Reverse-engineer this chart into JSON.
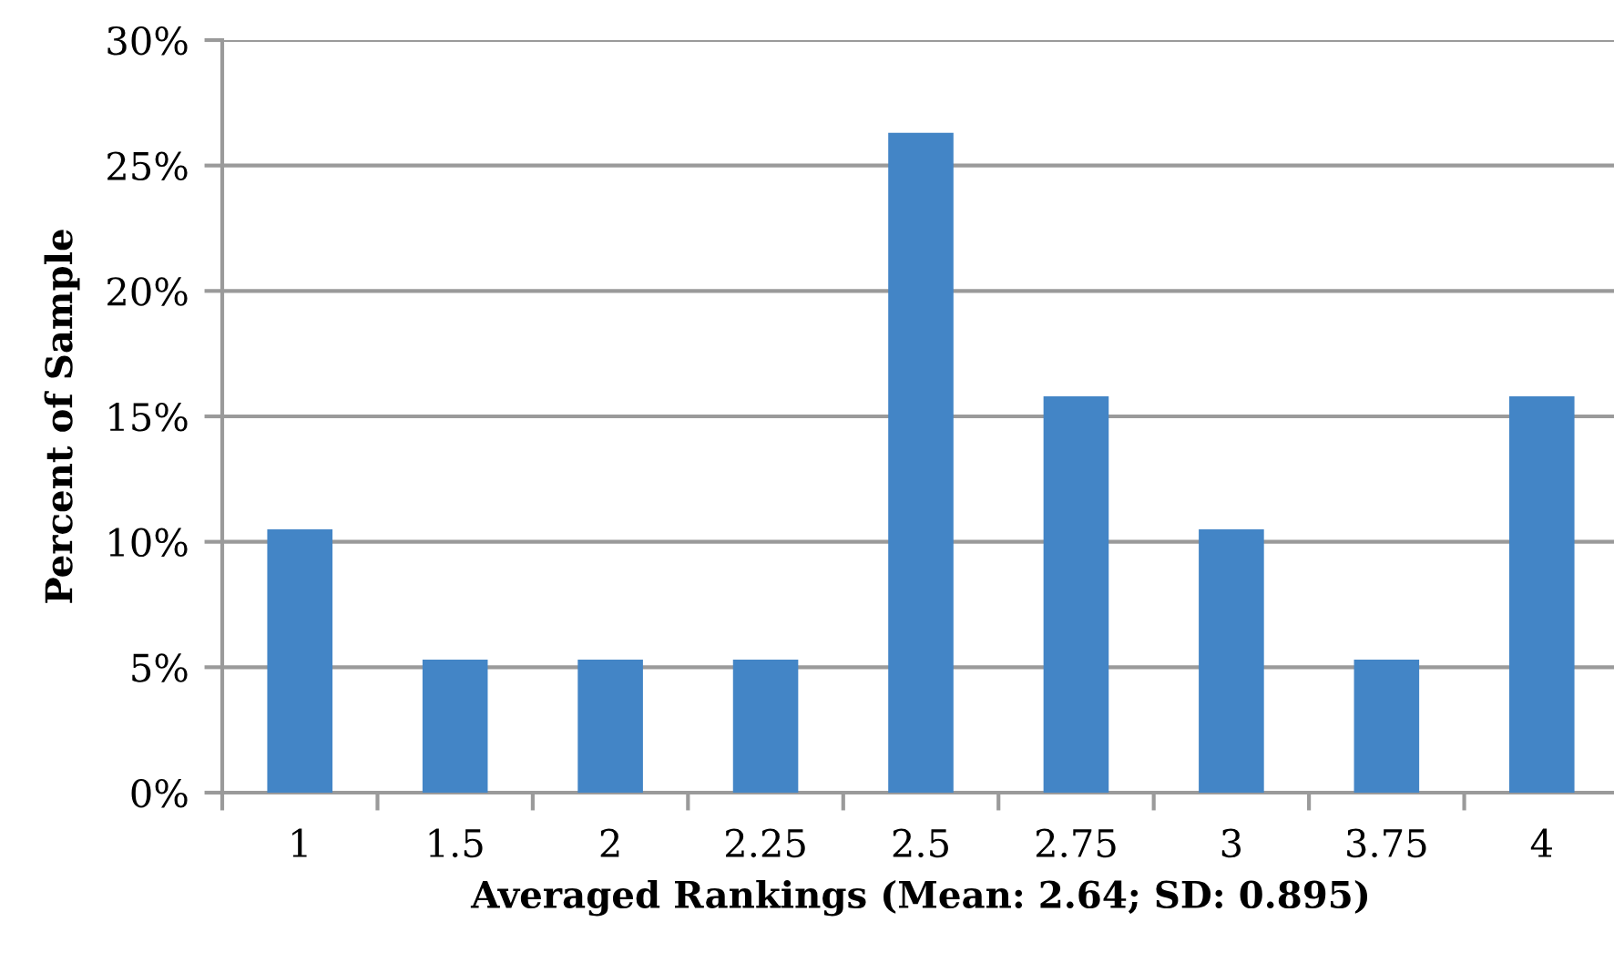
{
  "chart_data": {
    "type": "bar",
    "xlabel": "Averaged Rankings (Mean: 2.64; SD: 0.895)",
    "ylabel": "Percent of Sample",
    "categories": [
      "1",
      "1.5",
      "2",
      "2.25",
      "2.5",
      "2.75",
      "3",
      "3.75",
      "4"
    ],
    "values": [
      10.5,
      5.3,
      5.3,
      5.3,
      26.3,
      15.8,
      10.5,
      5.3,
      15.8
    ],
    "color": "#4385c6",
    "ylim": [
      0,
      30
    ],
    "yticks": [
      {
        "value": 0,
        "label": "0%"
      },
      {
        "value": 5,
        "label": "5%"
      },
      {
        "value": 10,
        "label": "10%"
      },
      {
        "value": 15,
        "label": "15%"
      },
      {
        "value": 20,
        "label": "20%"
      },
      {
        "value": 25,
        "label": "25%"
      },
      {
        "value": 30,
        "label": "30%"
      }
    ],
    "grid": "y"
  }
}
